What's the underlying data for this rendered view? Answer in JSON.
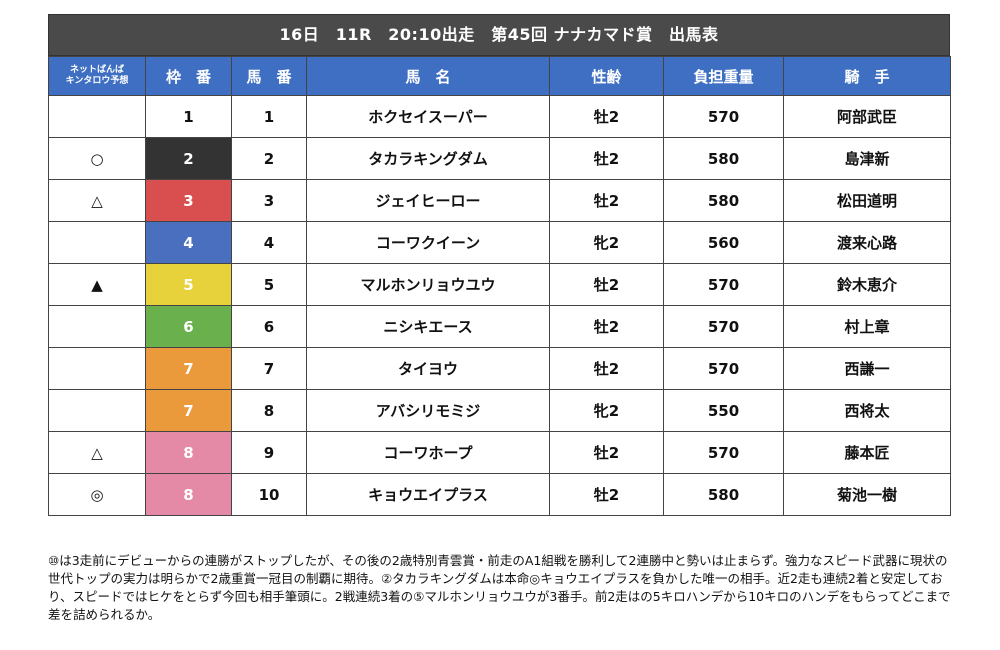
{
  "title": "16日　11R　20:10出走　第45回 ナナカマド賞　出馬表",
  "headers": {
    "prediction_line1": "ネットばんば",
    "prediction_line2": "キンタロウ予想",
    "waku": "枠　番",
    "umaban": "馬　番",
    "name": "馬　名",
    "sex_age": "性齢",
    "weight": "負担重量",
    "jockey": "騎　手"
  },
  "colors": {
    "header_bg": "#3f6fc2",
    "title_bg": "#4a4a4a",
    "waku": {
      "1": "#ffffff",
      "2": "#333333",
      "3": "#d94f4f",
      "4": "#4b6fbf",
      "5": "#e8d23c",
      "6": "#6ab04c",
      "7": "#ea9a3a",
      "8": "#e48aa6"
    }
  },
  "entries": [
    {
      "mark": "",
      "waku": "1",
      "umaban": "1",
      "name": "ホクセイスーパー",
      "sex_age": "牡2",
      "weight": "570",
      "jockey": "阿部武臣"
    },
    {
      "mark": "○",
      "waku": "2",
      "umaban": "2",
      "name": "タカラキングダム",
      "sex_age": "牡2",
      "weight": "580",
      "jockey": "島津新"
    },
    {
      "mark": "△",
      "waku": "3",
      "umaban": "3",
      "name": "ジェイヒーロー",
      "sex_age": "牡2",
      "weight": "580",
      "jockey": "松田道明"
    },
    {
      "mark": "",
      "waku": "4",
      "umaban": "4",
      "name": "コーワクイーン",
      "sex_age": "牝2",
      "weight": "560",
      "jockey": "渡来心路"
    },
    {
      "mark": "▲",
      "waku": "5",
      "umaban": "5",
      "name": "マルホンリョウユウ",
      "sex_age": "牡2",
      "weight": "570",
      "jockey": "鈴木恵介"
    },
    {
      "mark": "",
      "waku": "6",
      "umaban": "6",
      "name": "ニシキエース",
      "sex_age": "牡2",
      "weight": "570",
      "jockey": "村上章"
    },
    {
      "mark": "",
      "waku": "7",
      "umaban": "7",
      "name": "タイヨウ",
      "sex_age": "牡2",
      "weight": "570",
      "jockey": "西謙一"
    },
    {
      "mark": "",
      "waku": "7",
      "umaban": "8",
      "name": "アバシリモミジ",
      "sex_age": "牝2",
      "weight": "550",
      "jockey": "西将太"
    },
    {
      "mark": "△",
      "waku": "8",
      "umaban": "9",
      "name": "コーワホープ",
      "sex_age": "牡2",
      "weight": "570",
      "jockey": "藤本匠"
    },
    {
      "mark": "◎",
      "waku": "8",
      "umaban": "10",
      "name": "キョウエイプラス",
      "sex_age": "牡2",
      "weight": "580",
      "jockey": "菊池一樹"
    }
  ],
  "commentary": "⑩は3走前にデビューからの連勝がストップしたが、その後の2歳特別青雲賞・前走のA1組戦を勝利して2連勝中と勢いは止まらず。強力なスピード武器に現状の世代トップの実力は明らかで2歳重賞一冠目の制覇に期待。②タカラキングダムは本命◎キョウエイプラスを負かした唯一の相手。近2走も連続2着と安定しており、スピードではヒケをとらず今回も相手筆頭に。2戦連続3着の⑤マルホンリョウユウが3番手。前2走はの5キロハンデから10キロのハンデをもらってどこまで差を詰められるか。"
}
